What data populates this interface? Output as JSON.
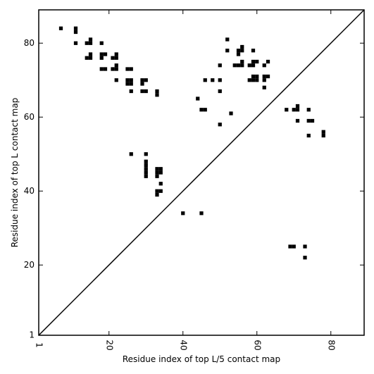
{
  "chart_data": {
    "type": "scatter",
    "marker": "square",
    "xlabel": "Residue index of top L/5 contact map",
    "ylabel": "Residue index of top L contact map",
    "xlim": [
      1,
      89
    ],
    "ylim": [
      1,
      89
    ],
    "xticks": [
      1,
      20,
      40,
      60,
      80
    ],
    "yticks": [
      1,
      20,
      40,
      60,
      80
    ],
    "xtick_labels": [
      "1",
      "20",
      "40",
      "60",
      "80"
    ],
    "ytick_labels": [
      "1",
      "20",
      "40",
      "60",
      "80"
    ],
    "grid": false,
    "diagonal_line": true,
    "colors": {
      "marker": "#000000",
      "frame": "#000000",
      "background": "#ffffff"
    },
    "series": [
      {
        "values": [
          [
            7,
            84
          ],
          [
            11,
            84
          ],
          [
            11,
            83
          ],
          [
            11,
            80
          ],
          [
            14,
            80
          ],
          [
            15,
            81
          ],
          [
            15,
            80
          ],
          [
            14,
            76
          ],
          [
            15,
            76
          ],
          [
            15,
            77
          ],
          [
            18,
            80
          ],
          [
            18,
            77
          ],
          [
            19,
            77
          ],
          [
            18,
            76
          ],
          [
            18,
            73
          ],
          [
            19,
            73
          ],
          [
            21,
            76
          ],
          [
            22,
            77
          ],
          [
            22,
            76
          ],
          [
            21,
            73
          ],
          [
            22,
            73
          ],
          [
            22,
            74
          ],
          [
            22,
            70
          ],
          [
            25,
            73
          ],
          [
            26,
            73
          ],
          [
            25,
            70
          ],
          [
            26,
            70
          ],
          [
            25,
            69
          ],
          [
            26,
            69
          ],
          [
            26,
            67
          ],
          [
            29,
            70
          ],
          [
            30,
            70
          ],
          [
            29,
            69
          ],
          [
            29,
            67
          ],
          [
            30,
            67
          ],
          [
            33,
            67
          ],
          [
            33,
            66
          ],
          [
            44,
            65
          ],
          [
            45,
            62
          ],
          [
            46,
            62
          ],
          [
            46,
            70
          ],
          [
            48,
            70
          ],
          [
            50,
            70
          ],
          [
            50,
            74
          ],
          [
            50,
            67
          ],
          [
            50,
            58
          ],
          [
            52,
            81
          ],
          [
            52,
            78
          ],
          [
            53,
            61
          ],
          [
            54,
            74
          ],
          [
            55,
            74
          ],
          [
            56,
            74
          ],
          [
            56,
            75
          ],
          [
            55,
            78
          ],
          [
            56,
            78
          ],
          [
            55,
            77
          ],
          [
            56,
            79
          ],
          [
            58,
            74
          ],
          [
            59,
            74
          ],
          [
            59,
            75
          ],
          [
            60,
            75
          ],
          [
            59,
            78
          ],
          [
            58,
            70
          ],
          [
            59,
            70
          ],
          [
            59,
            71
          ],
          [
            60,
            71
          ],
          [
            60,
            70
          ],
          [
            62,
            74
          ],
          [
            63,
            75
          ],
          [
            62,
            71
          ],
          [
            63,
            71
          ],
          [
            62,
            70
          ],
          [
            62,
            68
          ],
          [
            68,
            62
          ],
          [
            70,
            62
          ],
          [
            71,
            62
          ],
          [
            71,
            63
          ],
          [
            74,
            62
          ],
          [
            71,
            59
          ],
          [
            74,
            59
          ],
          [
            75,
            59
          ],
          [
            74,
            55
          ],
          [
            78,
            56
          ],
          [
            78,
            55
          ],
          [
            26,
            50
          ],
          [
            30,
            50
          ],
          [
            30,
            48
          ],
          [
            30,
            47
          ],
          [
            30,
            46
          ],
          [
            30,
            45
          ],
          [
            30,
            44
          ],
          [
            33,
            46
          ],
          [
            34,
            46
          ],
          [
            33,
            45
          ],
          [
            34,
            45
          ],
          [
            33,
            44
          ],
          [
            33,
            40
          ],
          [
            34,
            40
          ],
          [
            33,
            39
          ],
          [
            34,
            42
          ],
          [
            40,
            34
          ],
          [
            45,
            34
          ],
          [
            69,
            25
          ],
          [
            70,
            25
          ],
          [
            73,
            25
          ],
          [
            73,
            22
          ]
        ]
      }
    ]
  }
}
